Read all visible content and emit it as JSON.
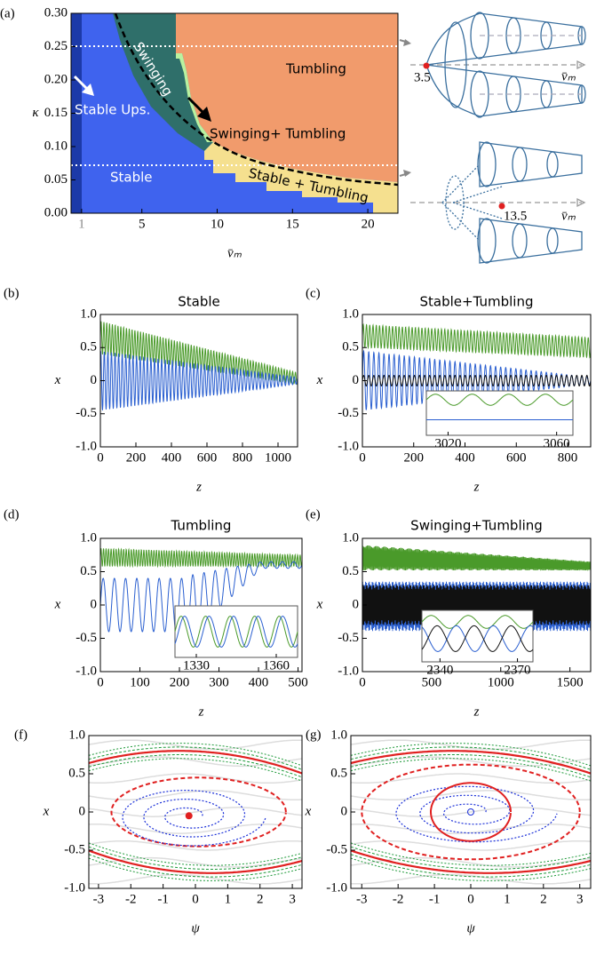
{
  "panels": [
    {
      "label": "(a)",
      "xlabel": "v̄ₘ",
      "ylabel": "κ",
      "xlim": [
        0.3,
        22
      ],
      "ylim": [
        0,
        0.3
      ],
      "xticks": [
        1,
        5,
        10,
        15,
        20
      ],
      "yticks": [
        {
          "value": 0,
          "label": "0.00"
        },
        0.05,
        {
          "value": 0.1,
          "label": "0.10"
        },
        0.15,
        {
          "value": 0.2,
          "label": "0.20"
        },
        0.25,
        {
          "value": 0.3,
          "label": "0.30"
        }
      ],
      "regions": [
        "Tumbling",
        "Swinging",
        "Stable Ups.",
        "Swinging+ Tumbling",
        "Stable",
        "Stable + Tumbling"
      ],
      "diagram": {
        "top_marker": "3.5",
        "bottom_marker": "13.5",
        "axis_label": "v̄ₘ"
      }
    },
    {
      "label": "(b)",
      "title": "Stable",
      "xlabel": "z",
      "ylabel": "x",
      "xlim": [
        0,
        1110
      ],
      "ylim": [
        -1,
        1
      ],
      "xticks": [
        0,
        200,
        400,
        600,
        800,
        1000
      ],
      "yticks": [
        {
          "value": -1,
          "label": "-1.0"
        },
        -0.5,
        0,
        0.5,
        {
          "value": 1,
          "label": "1.0"
        }
      ]
    },
    {
      "label": "(c)",
      "title": "Stable+Tumbling",
      "xlabel": "z",
      "ylabel": "x",
      "xlim": [
        0,
        890
      ],
      "ylim": [
        -1,
        1
      ],
      "xticks": [
        0,
        200,
        400,
        600,
        800
      ],
      "yticks": [
        {
          "value": -1,
          "label": "-1.0"
        },
        -0.5,
        0,
        0.5,
        {
          "value": 1,
          "label": "1.0"
        }
      ],
      "inset": {
        "xlim": [
          3012,
          3066
        ],
        "xticks": [
          3020,
          3060
        ]
      }
    },
    {
      "label": "(d)",
      "title": "Tumbling",
      "xlabel": "z",
      "ylabel": "x",
      "xlim": [
        0,
        510
      ],
      "ylim": [
        -1,
        1
      ],
      "xticks": [
        0,
        100,
        200,
        300,
        400,
        500
      ],
      "yticks": [
        {
          "value": -1,
          "label": "-1.0"
        },
        -0.5,
        0,
        0.5,
        {
          "value": 1,
          "label": "1.0"
        }
      ],
      "inset": {
        "xlim": [
          1322,
          1368
        ],
        "xticks": [
          1330,
          1360
        ]
      }
    },
    {
      "label": "(e)",
      "title": "Swinging+Tumbling",
      "xlabel": "z",
      "ylabel": "x",
      "xlim": [
        0,
        1650
      ],
      "ylim": [
        -1,
        1
      ],
      "xticks": [
        0,
        500,
        1000,
        1500
      ],
      "yticks": [
        {
          "value": -1,
          "label": "-1.0"
        },
        -0.5,
        0,
        0.5,
        {
          "value": 1,
          "label": "1.0"
        }
      ],
      "inset": {
        "xlim": [
          2333,
          2376
        ],
        "xticks": [
          2340,
          2370
        ]
      }
    },
    {
      "label": "(f)",
      "xlabel": "ψ",
      "ylabel": "x",
      "xlim": [
        -3.3,
        3.3
      ],
      "ylim": [
        -1,
        1
      ],
      "xticks": [
        -3,
        -2,
        -1,
        0,
        1,
        2,
        3
      ],
      "yticks": [
        {
          "value": -1,
          "label": "-1.0"
        },
        -0.5,
        0,
        0.5,
        {
          "value": 1,
          "label": "1.0"
        }
      ]
    },
    {
      "label": "(g)",
      "xlabel": "ψ",
      "ylabel": "x",
      "xlim": [
        -3.3,
        3.3
      ],
      "ylim": [
        -1,
        1
      ],
      "xticks": [
        -3,
        -2,
        -1,
        0,
        1,
        2,
        3
      ],
      "yticks": [
        {
          "value": -1,
          "label": "-1.0"
        },
        -0.5,
        0,
        0.5,
        {
          "value": 1,
          "label": "1.0"
        }
      ]
    }
  ]
}
